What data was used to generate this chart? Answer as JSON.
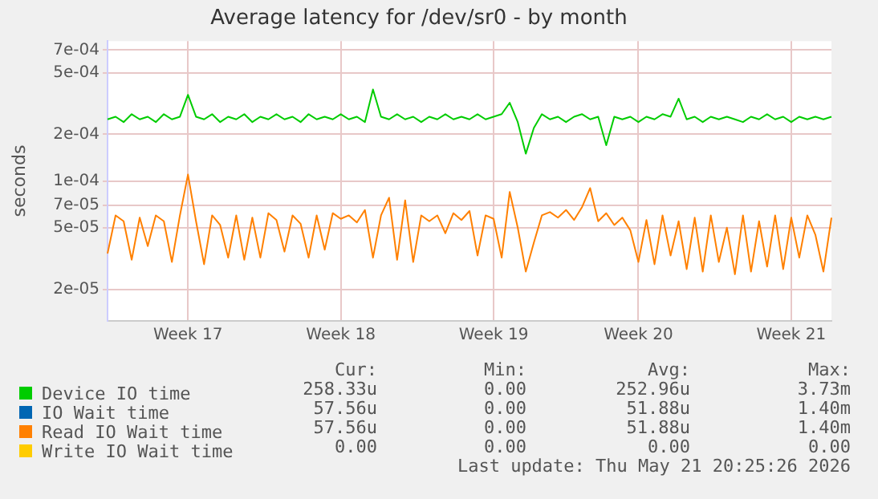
{
  "chart_data": {
    "type": "line",
    "title": "Average latency for /dev/sr0 - by month",
    "ylabel": "seconds",
    "log": "y",
    "grid": true,
    "legend": "bottom",
    "marker": "none",
    "line_style": "solid",
    "ylim": [
      1.25e-05,
      0.0008
    ],
    "yticks": [
      {
        "value": 2e-05,
        "label": "2e-05"
      },
      {
        "value": 5e-05,
        "label": "5e-05"
      },
      {
        "value": 7e-05,
        "label": "7e-05"
      },
      {
        "value": 0.0001,
        "label": "1e-04"
      },
      {
        "value": 0.0002,
        "label": "2e-04"
      },
      {
        "value": 0.0005,
        "label": "5e-04"
      },
      {
        "value": 0.0007,
        "label": "7e-04"
      }
    ],
    "categories": [
      null,
      null,
      null,
      null,
      null,
      null,
      null,
      null,
      null,
      null,
      "Week 17",
      null,
      null,
      null,
      null,
      null,
      null,
      null,
      null,
      null,
      null,
      null,
      null,
      null,
      null,
      null,
      null,
      null,
      null,
      "Week 18",
      null,
      null,
      null,
      null,
      null,
      null,
      null,
      null,
      null,
      null,
      null,
      null,
      null,
      null,
      null,
      null,
      null,
      null,
      "Week 19",
      null,
      null,
      null,
      null,
      null,
      null,
      null,
      null,
      null,
      null,
      null,
      null,
      null,
      null,
      null,
      null,
      null,
      "Week 20",
      null,
      null,
      null,
      null,
      null,
      null,
      null,
      null,
      null,
      null,
      null,
      null,
      null,
      null,
      null,
      null,
      null,
      null,
      "Week 21",
      null,
      null,
      null,
      null,
      null
    ],
    "series": [
      {
        "name": "Device IO time",
        "color": "#00cc00",
        "values": [
          0.00025,
          0.00026,
          0.00024,
          0.00027,
          0.00025,
          0.00026,
          0.00024,
          0.00027,
          0.00025,
          0.00026,
          0.00036,
          0.00026,
          0.00025,
          0.00027,
          0.00024,
          0.00026,
          0.00025,
          0.00027,
          0.00024,
          0.00026,
          0.00025,
          0.00027,
          0.00025,
          0.00026,
          0.00024,
          0.00027,
          0.00025,
          0.00026,
          0.00025,
          0.00027,
          0.00025,
          0.00026,
          0.00024,
          0.00039,
          0.00026,
          0.00025,
          0.00027,
          0.00025,
          0.00026,
          0.00024,
          0.00026,
          0.00025,
          0.00027,
          0.00025,
          0.00026,
          0.00025,
          0.00027,
          0.00025,
          0.00026,
          0.00027,
          0.00032,
          0.00024,
          0.00015,
          0.00022,
          0.00027,
          0.00025,
          0.00026,
          0.00024,
          0.00026,
          0.00027,
          0.00025,
          0.00026,
          0.00017,
          0.00026,
          0.00025,
          0.00026,
          0.00024,
          0.00026,
          0.00025,
          0.00027,
          0.00026,
          0.00034,
          0.00025,
          0.00026,
          0.00024,
          0.00026,
          0.00025,
          0.00026,
          0.00025,
          0.00024,
          0.00026,
          0.00025,
          0.00027,
          0.00025,
          0.00026,
          0.00024,
          0.00026,
          0.00025,
          0.00026,
          0.00025,
          0.00026
        ]
      },
      {
        "name": "IO Wait time",
        "color": "#0066b3",
        "values": [
          null,
          null,
          null,
          null,
          null,
          null,
          null,
          null,
          null,
          null,
          null,
          null,
          null,
          null,
          null,
          null,
          null,
          null,
          null,
          null,
          null,
          null,
          null,
          null,
          null,
          null,
          null,
          null,
          null,
          null,
          null,
          null,
          null,
          null,
          null,
          null,
          null,
          null,
          null,
          null,
          null,
          null,
          null,
          null,
          null,
          null,
          null,
          null,
          null,
          null,
          null,
          null,
          null,
          null,
          null,
          null,
          null,
          null,
          null,
          null,
          null,
          null,
          null,
          null,
          null,
          null,
          null,
          null,
          null,
          null,
          null,
          null,
          null,
          null,
          null,
          null,
          null,
          null,
          null,
          null,
          null,
          null,
          null,
          null,
          null,
          null,
          null,
          null,
          null,
          null,
          null
        ]
      },
      {
        "name": "Read IO Wait time",
        "color": "#ff8000",
        "values": [
          3.4e-05,
          6e-05,
          5.5e-05,
          3.1e-05,
          5.8e-05,
          3.8e-05,
          6e-05,
          5.5e-05,
          3e-05,
          6e-05,
          0.00011,
          5.5e-05,
          2.9e-05,
          6e-05,
          5.2e-05,
          3.2e-05,
          6e-05,
          3.1e-05,
          5.8e-05,
          3.2e-05,
          6.2e-05,
          5.6e-05,
          3.5e-05,
          6e-05,
          5.3e-05,
          3.2e-05,
          6e-05,
          3.6e-05,
          6.2e-05,
          5.7e-05,
          6e-05,
          5.4e-05,
          6.5e-05,
          3.2e-05,
          6e-05,
          7.8e-05,
          3.1e-05,
          7.5e-05,
          3e-05,
          6e-05,
          5.5e-05,
          6e-05,
          4.6e-05,
          6.2e-05,
          5.6e-05,
          6.4e-05,
          3.3e-05,
          6e-05,
          5.7e-05,
          3.2e-05,
          8.5e-05,
          5e-05,
          2.6e-05,
          4e-05,
          6e-05,
          6.3e-05,
          5.8e-05,
          6.5e-05,
          5.6e-05,
          6.8e-05,
          9e-05,
          5.5e-05,
          6.2e-05,
          5.2e-05,
          5.8e-05,
          4.8e-05,
          3e-05,
          5.6e-05,
          2.9e-05,
          6e-05,
          3.3e-05,
          5.5e-05,
          2.7e-05,
          5.8e-05,
          2.6e-05,
          6e-05,
          3e-05,
          5e-05,
          2.5e-05,
          6e-05,
          2.6e-05,
          5.5e-05,
          2.8e-05,
          6e-05,
          2.7e-05,
          5.8e-05,
          3.2e-05,
          6e-05,
          4.5e-05,
          2.6e-05,
          5.8e-05
        ]
      },
      {
        "name": "Write IO Wait time",
        "color": "#ffcc00",
        "values": [
          null,
          null,
          null,
          null,
          null,
          null,
          null,
          null,
          null,
          null,
          null,
          null,
          null,
          null,
          null,
          null,
          null,
          null,
          null,
          null,
          null,
          null,
          null,
          null,
          null,
          null,
          null,
          null,
          null,
          null,
          null,
          null,
          null,
          null,
          null,
          null,
          null,
          null,
          null,
          null,
          null,
          null,
          null,
          null,
          null,
          null,
          null,
          null,
          null,
          null,
          null,
          null,
          null,
          null,
          null,
          null,
          null,
          null,
          null,
          null,
          null,
          null,
          null,
          null,
          null,
          null,
          null,
          null,
          null,
          null,
          null,
          null,
          null,
          null,
          null,
          null,
          null,
          null,
          null,
          null,
          null,
          null,
          null,
          null,
          null,
          null,
          null,
          null,
          null,
          null,
          null
        ]
      }
    ],
    "annotations": [
      "Cur:",
      "Min:",
      "Avg:",
      "Max:",
      "258.33u",
      "0.00",
      "252.96u",
      "3.73m",
      "57.56u",
      "0.00",
      "51.88u",
      "1.40m",
      "57.56u",
      "0.00",
      "51.88u",
      "1.40m",
      "0.00",
      "0.00",
      "0.00",
      "0.00",
      "Last update: Thu May 21 20:25:26 2026"
    ]
  }
}
